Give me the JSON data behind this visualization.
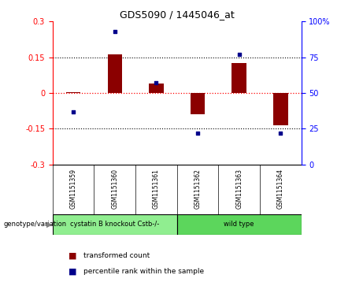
{
  "title": "GDS5090 / 1445046_at",
  "samples": [
    "GSM1151359",
    "GSM1151360",
    "GSM1151361",
    "GSM1151362",
    "GSM1151363",
    "GSM1151364"
  ],
  "bar_values": [
    0.003,
    0.163,
    0.04,
    -0.09,
    0.125,
    -0.135
  ],
  "dot_values": [
    37,
    93,
    57,
    22,
    77,
    22
  ],
  "groups": [
    {
      "label": "cystatin B knockout Cstb-/-",
      "samples": [
        0,
        1,
        2
      ],
      "color": "#90ee90"
    },
    {
      "label": "wild type",
      "samples": [
        3,
        4,
        5
      ],
      "color": "#5cd65c"
    }
  ],
  "ylim_left": [
    -0.3,
    0.3
  ],
  "ylim_right": [
    0,
    100
  ],
  "yticks_left": [
    -0.3,
    -0.15,
    0.0,
    0.15,
    0.3
  ],
  "yticks_right": [
    0,
    25,
    50,
    75,
    100
  ],
  "hlines": [
    0.15,
    -0.15
  ],
  "bar_color": "#8B0000",
  "dot_color": "#00008B",
  "bar_width": 0.35,
  "background_color": "#ffffff",
  "plot_bg_color": "#ffffff",
  "sample_box_color": "#cccccc",
  "genotype_label": "genotype/variation",
  "legend_bar_label": "transformed count",
  "legend_dot_label": "percentile rank within the sample",
  "title_fontsize": 9,
  "tick_fontsize": 7,
  "sample_fontsize": 5.5,
  "group_fontsize": 6,
  "legend_fontsize": 6.5
}
